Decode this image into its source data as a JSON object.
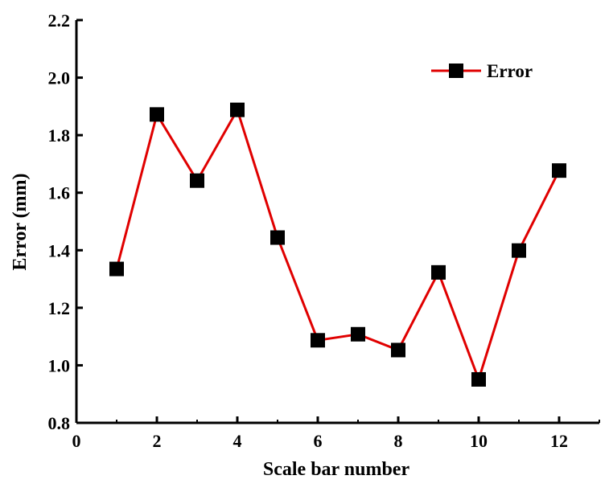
{
  "chart_data": {
    "type": "line",
    "title": "",
    "xlabel": "Scale bar number",
    "ylabel": "Error (mm)",
    "xlim": [
      0,
      13
    ],
    "ylim": [
      0.8,
      2.2
    ],
    "xticks": [
      0,
      2,
      4,
      6,
      8,
      10,
      12
    ],
    "xtick_labels": [
      "0",
      "2",
      "4",
      "6",
      "8",
      "10",
      "12"
    ],
    "yticks": [
      0.8,
      1.0,
      1.2,
      1.4,
      1.6,
      1.8,
      2.0,
      2.2
    ],
    "ytick_labels": [
      "0.8",
      "1.0",
      "1.2",
      "1.4",
      "1.6",
      "1.8",
      "2.0",
      "2.2"
    ],
    "grid": false,
    "legend_position": "top-right",
    "series": [
      {
        "name": "Error",
        "color": "#e00000",
        "marker": "square",
        "marker_color": "#000000",
        "x": [
          1,
          2,
          3,
          4,
          5,
          6,
          7,
          8,
          9,
          10,
          11,
          12
        ],
        "y": [
          1.335,
          1.872,
          1.642,
          1.888,
          1.444,
          1.087,
          1.108,
          1.053,
          1.323,
          0.951,
          1.399,
          1.677
        ]
      }
    ]
  }
}
